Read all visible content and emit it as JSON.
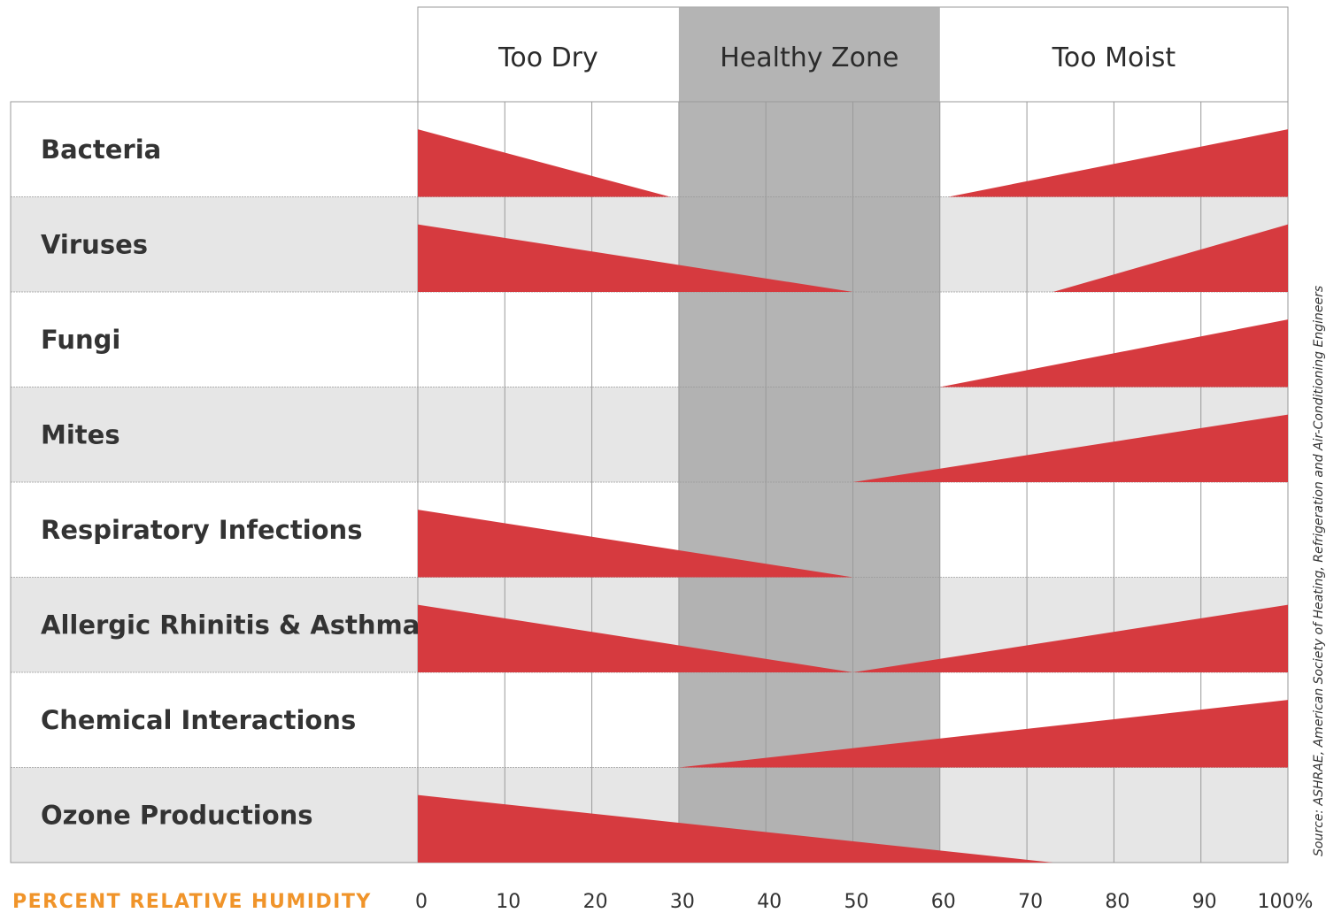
{
  "chart_data": {
    "type": "area",
    "zones": [
      {
        "label": "Too Dry",
        "from": 0,
        "to": 30
      },
      {
        "label": "Healthy Zone",
        "from": 30,
        "to": 60
      },
      {
        "label": "Too Moist",
        "from": 60,
        "to": 100
      }
    ],
    "x_ticks": [
      "0",
      "10",
      "20",
      "30",
      "40",
      "50",
      "60",
      "70",
      "80",
      "90",
      "100%"
    ],
    "x_title": "PERCENT RELATIVE HUMIDITY",
    "xlim": [
      0,
      100
    ],
    "series": [
      {
        "name": "Bacteria",
        "low_side": {
          "from": 0,
          "to": 29
        },
        "high_side": {
          "from": 61,
          "to": 100
        }
      },
      {
        "name": "Viruses",
        "low_side": {
          "from": 0,
          "to": 50
        },
        "high_side": {
          "from": 73,
          "to": 100
        }
      },
      {
        "name": "Fungi",
        "low_side": null,
        "high_side": {
          "from": 60,
          "to": 100
        }
      },
      {
        "name": "Mites",
        "low_side": null,
        "high_side": {
          "from": 50,
          "to": 100
        }
      },
      {
        "name": "Respiratory Infections",
        "low_side": {
          "from": 0,
          "to": 50
        },
        "high_side": null
      },
      {
        "name": "Allergic Rhinitis & Asthma",
        "low_side": {
          "from": 0,
          "to": 50
        },
        "high_side": {
          "from": 50,
          "to": 100
        }
      },
      {
        "name": "Chemical Interactions",
        "low_side": null,
        "high_side": {
          "from": 30,
          "to": 100
        }
      },
      {
        "name": "Ozone Productions",
        "low_side": {
          "from": 0,
          "to": 73
        },
        "high_side": null
      }
    ],
    "source": "Source: ASHRAE, American Society of Heating, Refrigeration and Air-Conditioning Engineers",
    "colors": {
      "band": "#d63a3f",
      "healthy_zone": "#aeaeae",
      "row_shade": "#e6e6e6",
      "grid": "#9a9a9a",
      "x_title": "#f0942a"
    }
  }
}
